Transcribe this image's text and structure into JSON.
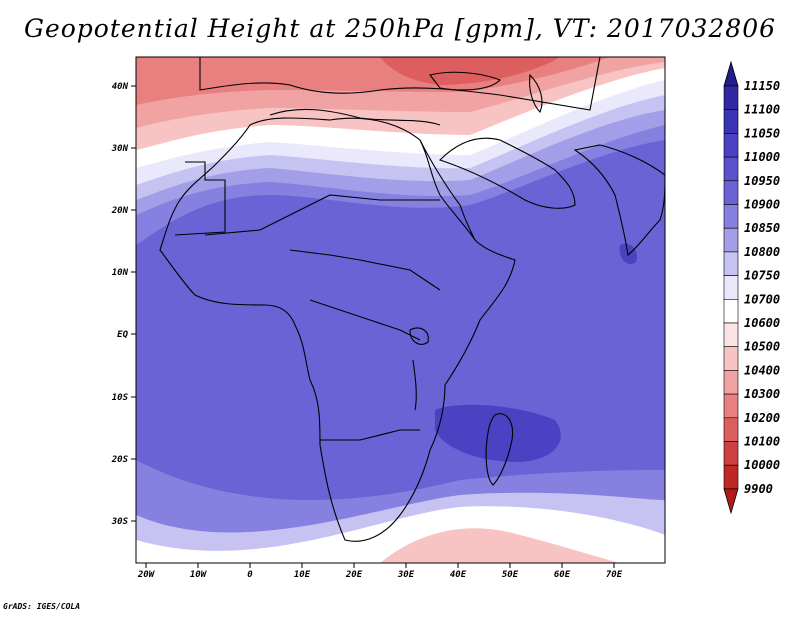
{
  "title": "Geopotential Height at 250hPa [gpm], VT: 2017032806",
  "credit": "GrADS: IGES/COLA",
  "map": {
    "lon_range": [
      -25,
      80
    ],
    "lat_range": [
      -37,
      45
    ],
    "x_ticks": [
      "20W",
      "10W",
      "0",
      "10E",
      "20E",
      "30E",
      "40E",
      "50E",
      "60E",
      "70E"
    ],
    "y_ticks": [
      "40N",
      "30N",
      "20N",
      "10N",
      "EQ",
      "10S",
      "20S",
      "30S"
    ]
  },
  "colorbar": {
    "levels": [
      "11150",
      "11100",
      "11050",
      "11000",
      "10950",
      "10900",
      "10850",
      "10800",
      "10750",
      "10700",
      "10600",
      "10500",
      "10400",
      "10300",
      "10200",
      "10100",
      "10000",
      "9900"
    ],
    "colors": {
      "top_arrow": "#231c8c",
      "bottom_arrow": "#b01c1c",
      "bands": [
        "#2b2296",
        "#3128a4",
        "#3a33b4",
        "#4a42c2",
        "#5a52cc",
        "#6a63d6",
        "#8680e0",
        "#a29ee8",
        "#c6c3f2",
        "#eae8fb",
        "#ffffff",
        "#fde4e4",
        "#f7c4c3",
        "#f0a3a2",
        "#e88080",
        "#dd5e5e",
        "#d04040",
        "#c02828",
        "#b01c1c"
      ]
    }
  },
  "field_colors": {
    "pale_red": "#f7c4c3",
    "mid_red": "#f0a3a2",
    "red": "#e88080",
    "deep_red": "#dd5e5e",
    "white": "#ffffff",
    "pale_blue": "#eae8fb",
    "light_blue": "#c6c3f2",
    "blue": "#a29ee8",
    "mid_blue": "#8680e0",
    "main_blue": "#6a63d6",
    "dark_blue": "#4a42c2"
  }
}
